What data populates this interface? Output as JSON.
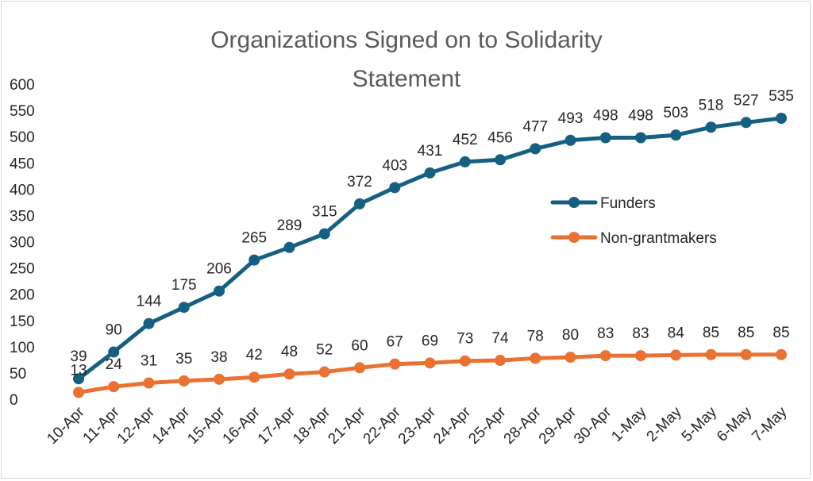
{
  "chart_data": {
    "type": "line",
    "title_lines": [
      "Organizations Signed on to Solidarity",
      "Statement"
    ],
    "categories": [
      "10-Apr",
      "11-Apr",
      "12-Apr",
      "14-Apr",
      "15-Apr",
      "16-Apr",
      "17-Apr",
      "18-Apr",
      "21-Apr",
      "22-Apr",
      "23-Apr",
      "24-Apr",
      "25-Apr",
      "28-Apr",
      "29-Apr",
      "30-Apr",
      "1-May",
      "2-May",
      "5-May",
      "6-May",
      "7-May"
    ],
    "series": [
      {
        "name": "Funders",
        "color": "#156082",
        "values": [
          39,
          90,
          144,
          175,
          206,
          265,
          289,
          315,
          372,
          403,
          431,
          452,
          456,
          477,
          493,
          498,
          498,
          503,
          518,
          527,
          535
        ]
      },
      {
        "name": "Non-grantmakers",
        "color": "#E97132",
        "values": [
          13,
          24,
          31,
          35,
          38,
          42,
          48,
          52,
          60,
          67,
          69,
          73,
          74,
          78,
          80,
          83,
          83,
          84,
          85,
          85,
          85
        ]
      }
    ],
    "ylim": [
      0,
      600
    ],
    "yticks": [
      0,
      50,
      100,
      150,
      200,
      250,
      300,
      350,
      400,
      450,
      500,
      550,
      600
    ],
    "xlabel": "",
    "ylabel": "",
    "legend_position": "right"
  }
}
